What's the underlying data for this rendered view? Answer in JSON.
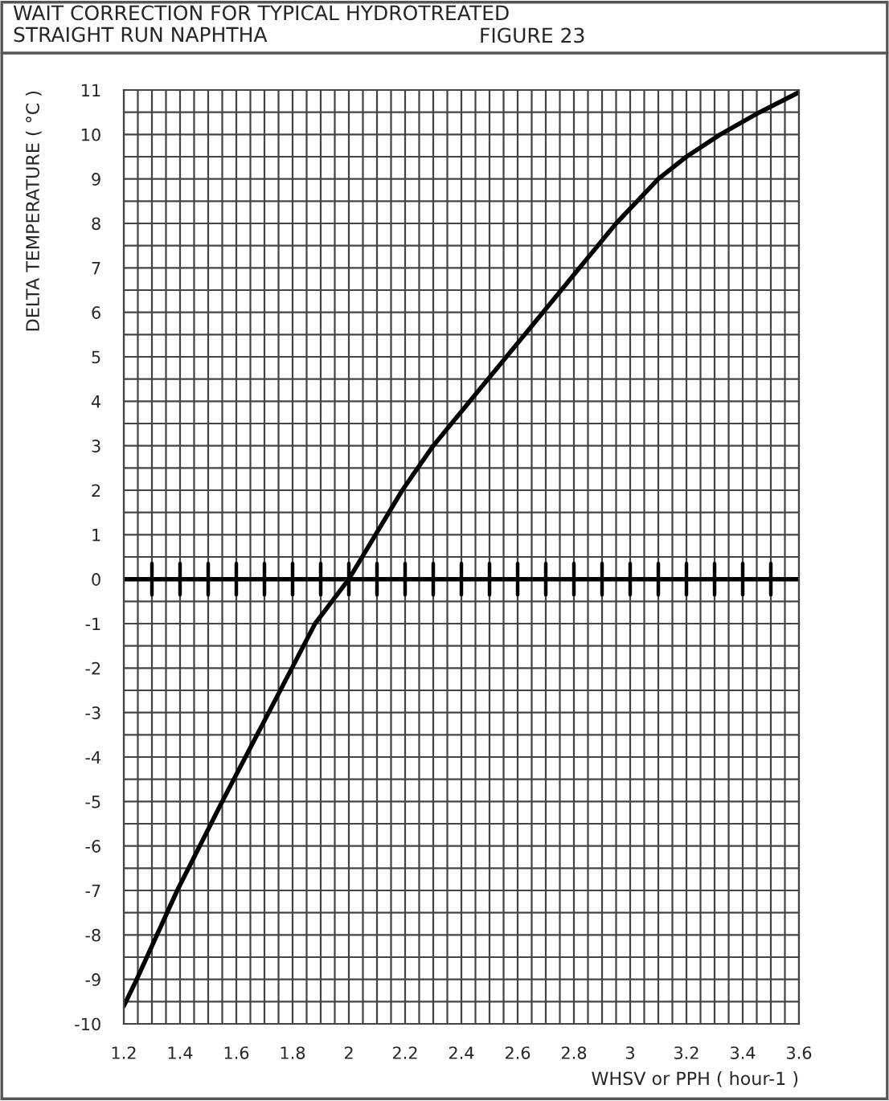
{
  "chart_data": {
    "type": "line",
    "title": "WAIT CORRECTION FOR TYPICAL HYDROTREATED\nSTRAIGHT RUN NAPHTHA",
    "subtitle": "FIGURE 23",
    "xlabel": "WHSV or PPH ( hour-1 )",
    "ylabel": "DELTA TEMPERATURE ( °C )",
    "series": [
      {
        "color": "#000000",
        "x": [
          1.2,
          1.246,
          1.39,
          1.55,
          1.715,
          1.88,
          2.0,
          2.19,
          2.3,
          2.43,
          2.56,
          2.69,
          2.82,
          2.95,
          3.1,
          3.2,
          3.32,
          3.46,
          3.6
        ],
        "values": [
          -9.6,
          -9,
          -7,
          -5,
          -3,
          -1,
          0,
          2,
          3,
          4,
          5,
          6,
          7,
          8,
          9,
          9.5,
          10,
          10.5,
          10.95
        ]
      }
    ],
    "xlim": [
      1.2,
      3.6
    ],
    "ylim": [
      -10,
      11
    ],
    "xticks": [
      1.2,
      {
        "value": 1.25,
        "label": null
      },
      1.4,
      {
        "value": 1.35,
        "label": null
      },
      {
        "value": 1.3,
        "label": null
      },
      {
        "value": 1.45,
        "label": null
      },
      1.6,
      {
        "value": 1.5,
        "label": null
      },
      {
        "value": 1.55,
        "label": null
      },
      {
        "value": 1.65,
        "label": null
      },
      1.8,
      {
        "value": 1.7,
        "label": null
      },
      {
        "value": 1.75,
        "label": null
      },
      {
        "value": 1.85,
        "label": null
      },
      2,
      {
        "value": 1.9,
        "label": null
      },
      {
        "value": 1.95,
        "label": null
      },
      {
        "value": 2.05,
        "label": null
      },
      2.2,
      {
        "value": 2.1,
        "label": null
      },
      {
        "value": 2.15,
        "label": null
      },
      {
        "value": 2.25,
        "label": null
      },
      2.4,
      {
        "value": 2.3,
        "label": null
      },
      {
        "value": 2.35,
        "label": null
      },
      {
        "value": 2.45,
        "label": null
      },
      2.6,
      {
        "value": 2.5,
        "label": null
      },
      {
        "value": 2.55,
        "label": null
      },
      {
        "value": 2.65,
        "label": null
      },
      2.8,
      {
        "value": 2.7,
        "label": null
      },
      {
        "value": 2.75,
        "label": null
      },
      {
        "value": 2.85,
        "label": null
      },
      3,
      {
        "value": 2.9,
        "label": null
      },
      {
        "value": 2.95,
        "label": null
      },
      {
        "value": 3.05,
        "label": null
      },
      3.2,
      {
        "value": 3.1,
        "label": null
      },
      {
        "value": 3.15,
        "label": null
      },
      {
        "value": 3.25,
        "label": null
      },
      3.4,
      {
        "value": 3.3,
        "label": null
      },
      {
        "value": 3.35,
        "label": null
      },
      {
        "value": 3.45,
        "label": null
      },
      3.6,
      {
        "value": 3.5,
        "label": null
      },
      {
        "value": 3.55,
        "label": null
      }
    ],
    "yticks": [
      -10,
      {
        "value": -9.5,
        "label": null
      },
      -9,
      {
        "value": -8.5,
        "label": null
      },
      -8,
      {
        "value": -7.5,
        "label": null
      },
      -7,
      {
        "value": -6.5,
        "label": null
      },
      -6,
      {
        "value": -5.5,
        "label": null
      },
      -5,
      {
        "value": -4.5,
        "label": null
      },
      -4,
      {
        "value": -3.5,
        "label": null
      },
      -3,
      {
        "value": -2.5,
        "label": null
      },
      -2,
      {
        "value": -1.5,
        "label": null
      },
      -1,
      {
        "value": -0.5,
        "label": null
      },
      0,
      {
        "value": 0.5,
        "label": null
      },
      1,
      {
        "value": 1.5,
        "label": null
      },
      2,
      {
        "value": 2.5,
        "label": null
      },
      3,
      {
        "value": 3.5,
        "label": null
      },
      4,
      {
        "value": 4.5,
        "label": null
      },
      5,
      {
        "value": 5.5,
        "label": null
      },
      6,
      {
        "value": 6.5,
        "label": null
      },
      7,
      {
        "value": 7.5,
        "label": null
      },
      8,
      {
        "value": 8.5,
        "label": null
      },
      9,
      {
        "value": 9.5,
        "label": null
      },
      10,
      {
        "value": 10.5,
        "label": null
      },
      11
    ],
    "grid": true,
    "ref_lines": [
      {
        "axis": "y",
        "value": 0,
        "label": null,
        "color": "#000000"
      }
    ]
  }
}
